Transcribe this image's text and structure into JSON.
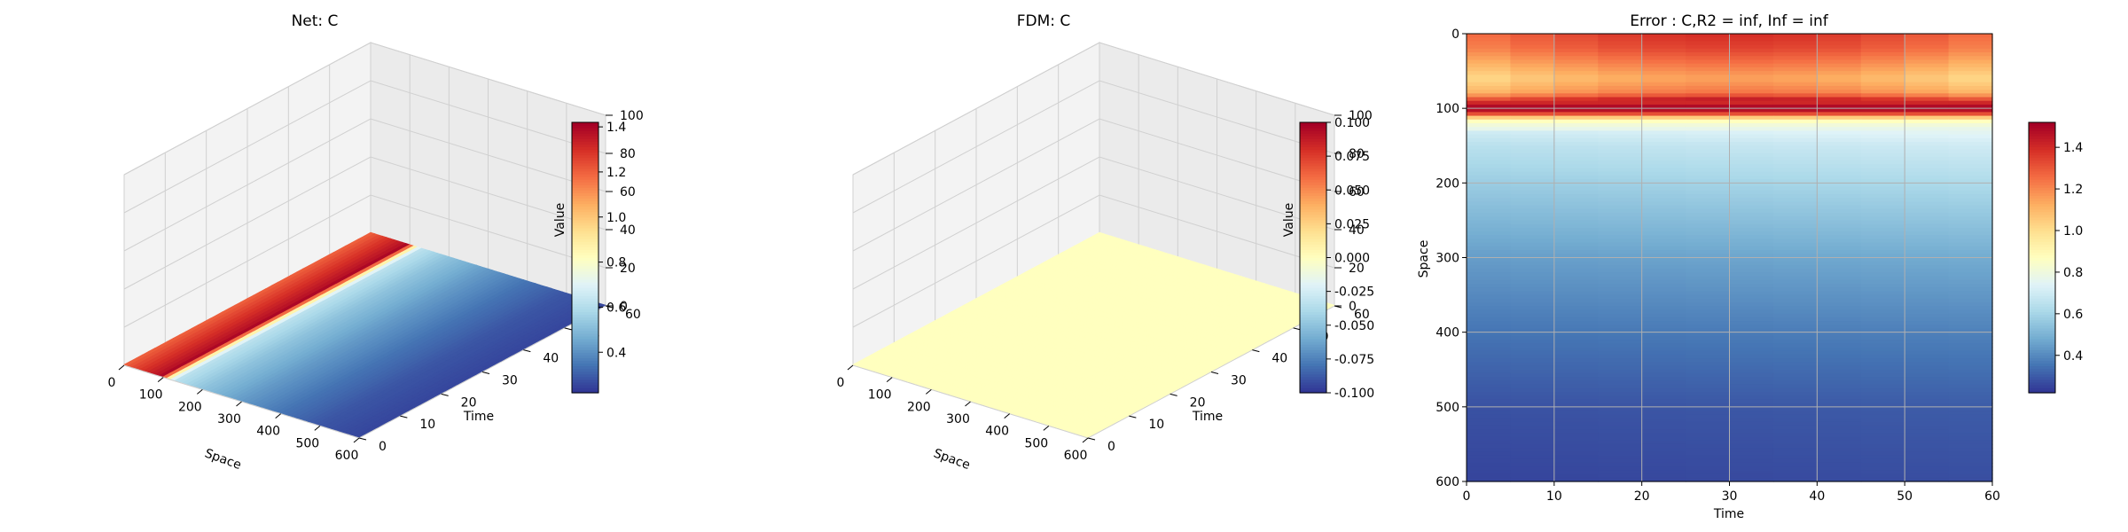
{
  "colormap": "RdYlBu_r",
  "chart_data": [
    {
      "type": "surface3d",
      "title": "Net: C",
      "xlabel": "Space",
      "ylabel": "Time",
      "zlabel": "Value",
      "xlim": [
        0,
        600
      ],
      "ylim": [
        0,
        60
      ],
      "zlim": [
        0,
        100
      ],
      "x_ticks": [
        "0",
        "100",
        "200",
        "300",
        "400",
        "500",
        "600"
      ],
      "y_ticks": [
        "0",
        "10",
        "20",
        "30",
        "40",
        "50",
        "60"
      ],
      "z_ticks": [
        "0",
        "20",
        "40",
        "60",
        "80",
        "100"
      ],
      "value_profile": {
        "x": [
          0,
          50,
          90,
          100,
          110,
          130,
          200,
          300,
          400,
          500,
          600
        ],
        "value": [
          1.2,
          1.3,
          1.38,
          1.42,
          0.95,
          0.62,
          0.52,
          0.42,
          0.34,
          0.28,
          0.25
        ]
      },
      "colorbar": {
        "range": [
          0.22,
          1.42
        ],
        "ticks": [
          "0.4",
          "0.6",
          "0.8",
          "1.0",
          "1.2",
          "1.4"
        ]
      }
    },
    {
      "type": "surface3d",
      "title": "FDM: C",
      "xlabel": "Space",
      "ylabel": "Time",
      "zlabel": "Value",
      "xlim": [
        0,
        600
      ],
      "ylim": [
        0,
        60
      ],
      "zlim": [
        0,
        100
      ],
      "x_ticks": [
        "0",
        "100",
        "200",
        "300",
        "400",
        "500",
        "600"
      ],
      "y_ticks": [
        "0",
        "10",
        "20",
        "30",
        "40",
        "50",
        "60"
      ],
      "z_ticks": [
        "0",
        "20",
        "40",
        "60",
        "80",
        "100"
      ],
      "constant_value": 0,
      "colorbar": {
        "range": [
          -0.1,
          0.1
        ],
        "ticks": [
          "-0.100",
          "-0.075",
          "-0.050",
          "-0.025",
          "0.000",
          "0.025",
          "0.050",
          "0.075",
          "0.100"
        ]
      }
    },
    {
      "type": "heatmap",
      "title": "Error : C,R2 = inf, Inf = inf",
      "xlabel": "Time",
      "ylabel": "Space",
      "xlim": [
        0,
        60
      ],
      "ylim": [
        600,
        0
      ],
      "grid": true,
      "x_ticks": [
        "0",
        "10",
        "20",
        "30",
        "40",
        "50",
        "60"
      ],
      "y_ticks": [
        "0",
        "100",
        "200",
        "300",
        "400",
        "500",
        "600"
      ],
      "value_profile": {
        "space": [
          0,
          20,
          60,
          80,
          90,
          95,
          100,
          105,
          110,
          115,
          125,
          150,
          200,
          300,
          400,
          500,
          600
        ],
        "value": [
          1.25,
          1.2,
          1.0,
          1.1,
          1.35,
          1.48,
          1.5,
          1.45,
          1.2,
          0.9,
          0.78,
          0.7,
          0.62,
          0.48,
          0.38,
          0.3,
          0.27
        ]
      },
      "colorbar": {
        "range": [
          0.22,
          1.52
        ],
        "ticks": [
          "0.4",
          "0.6",
          "0.8",
          "1.0",
          "1.2",
          "1.4"
        ]
      }
    }
  ]
}
